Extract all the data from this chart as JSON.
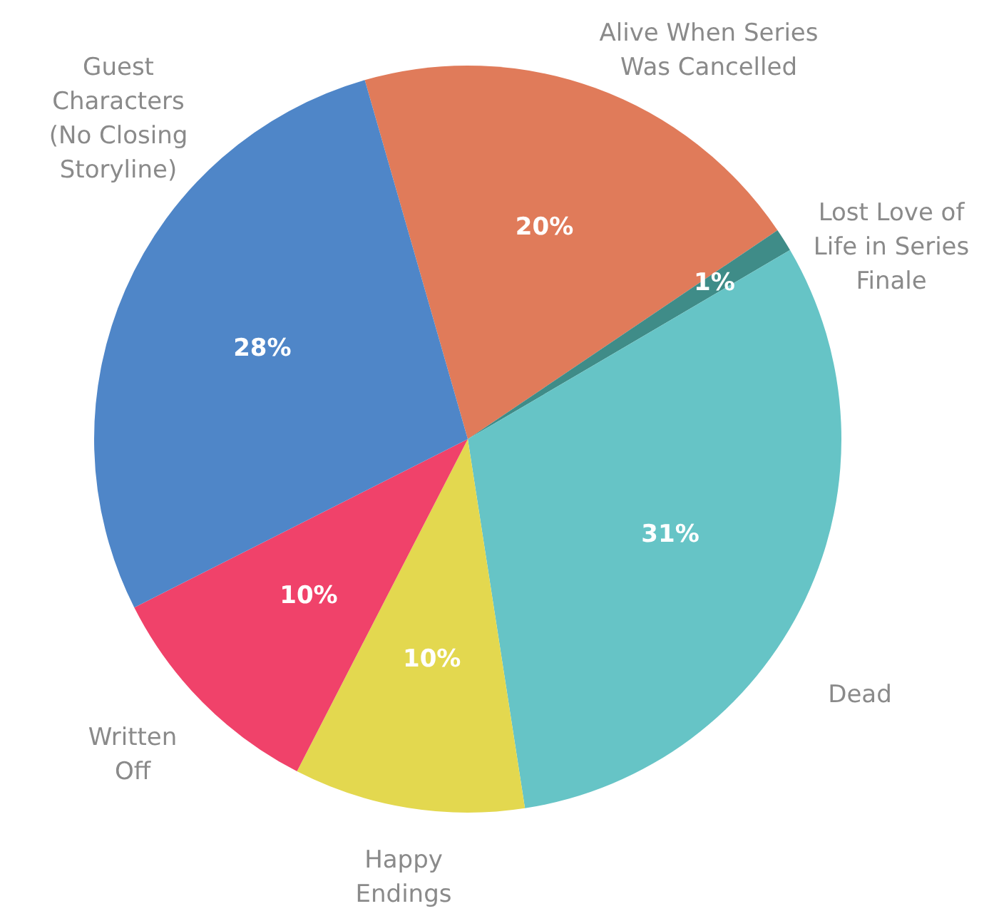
{
  "chart_data": {
    "type": "pie",
    "categories": [
      "Alive When Series Was Cancelled",
      "Lost Love of Life in Series Finale",
      "Dead",
      "Happy Endings",
      "Written Off",
      "Guest Characters (No Closing Storyline)"
    ],
    "values": [
      20,
      1,
      31,
      10,
      10,
      28
    ],
    "colors": [
      "#e07b5a",
      "#3f8c88",
      "#66c4c6",
      "#e3d84f",
      "#f0426a",
      "#4f86c8"
    ],
    "value_labels": [
      "20%",
      "1%",
      "31%",
      "10%",
      "10%",
      "28%"
    ],
    "legend": false
  }
}
